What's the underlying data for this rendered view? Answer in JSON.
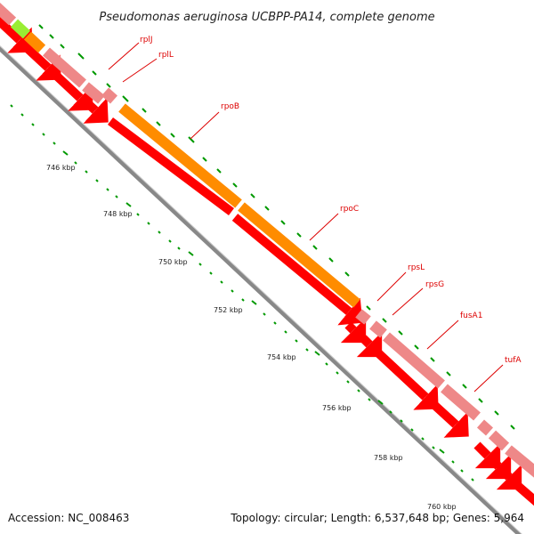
{
  "title": "Pseudomonas aeruginosa UCBPP-PA14, complete genome",
  "footer": {
    "accession": "Accession: NC_008463",
    "topology": "Topology: circular; Length: 6,537,648 bp; Genes: 5,964"
  },
  "ticks": [
    "746 kbp",
    "748 kbp",
    "750 kbp",
    "752 kbp",
    "754 kbp",
    "756 kbp",
    "758 kbp",
    "760 kbp"
  ],
  "genes": [
    "rplJ",
    "rplL",
    "rpoB",
    "rpoC",
    "rpsL",
    "rpsG",
    "fusA1",
    "tufA"
  ],
  "colors": {
    "cds_red": "#ff0000",
    "dark_red": "#cc0000",
    "pink": "#ee8888",
    "orange": "#ff8c00",
    "lime": "#99ee33",
    "backbone": "#888888",
    "tick_green": "#009900",
    "label_red": "#dd0000"
  }
}
